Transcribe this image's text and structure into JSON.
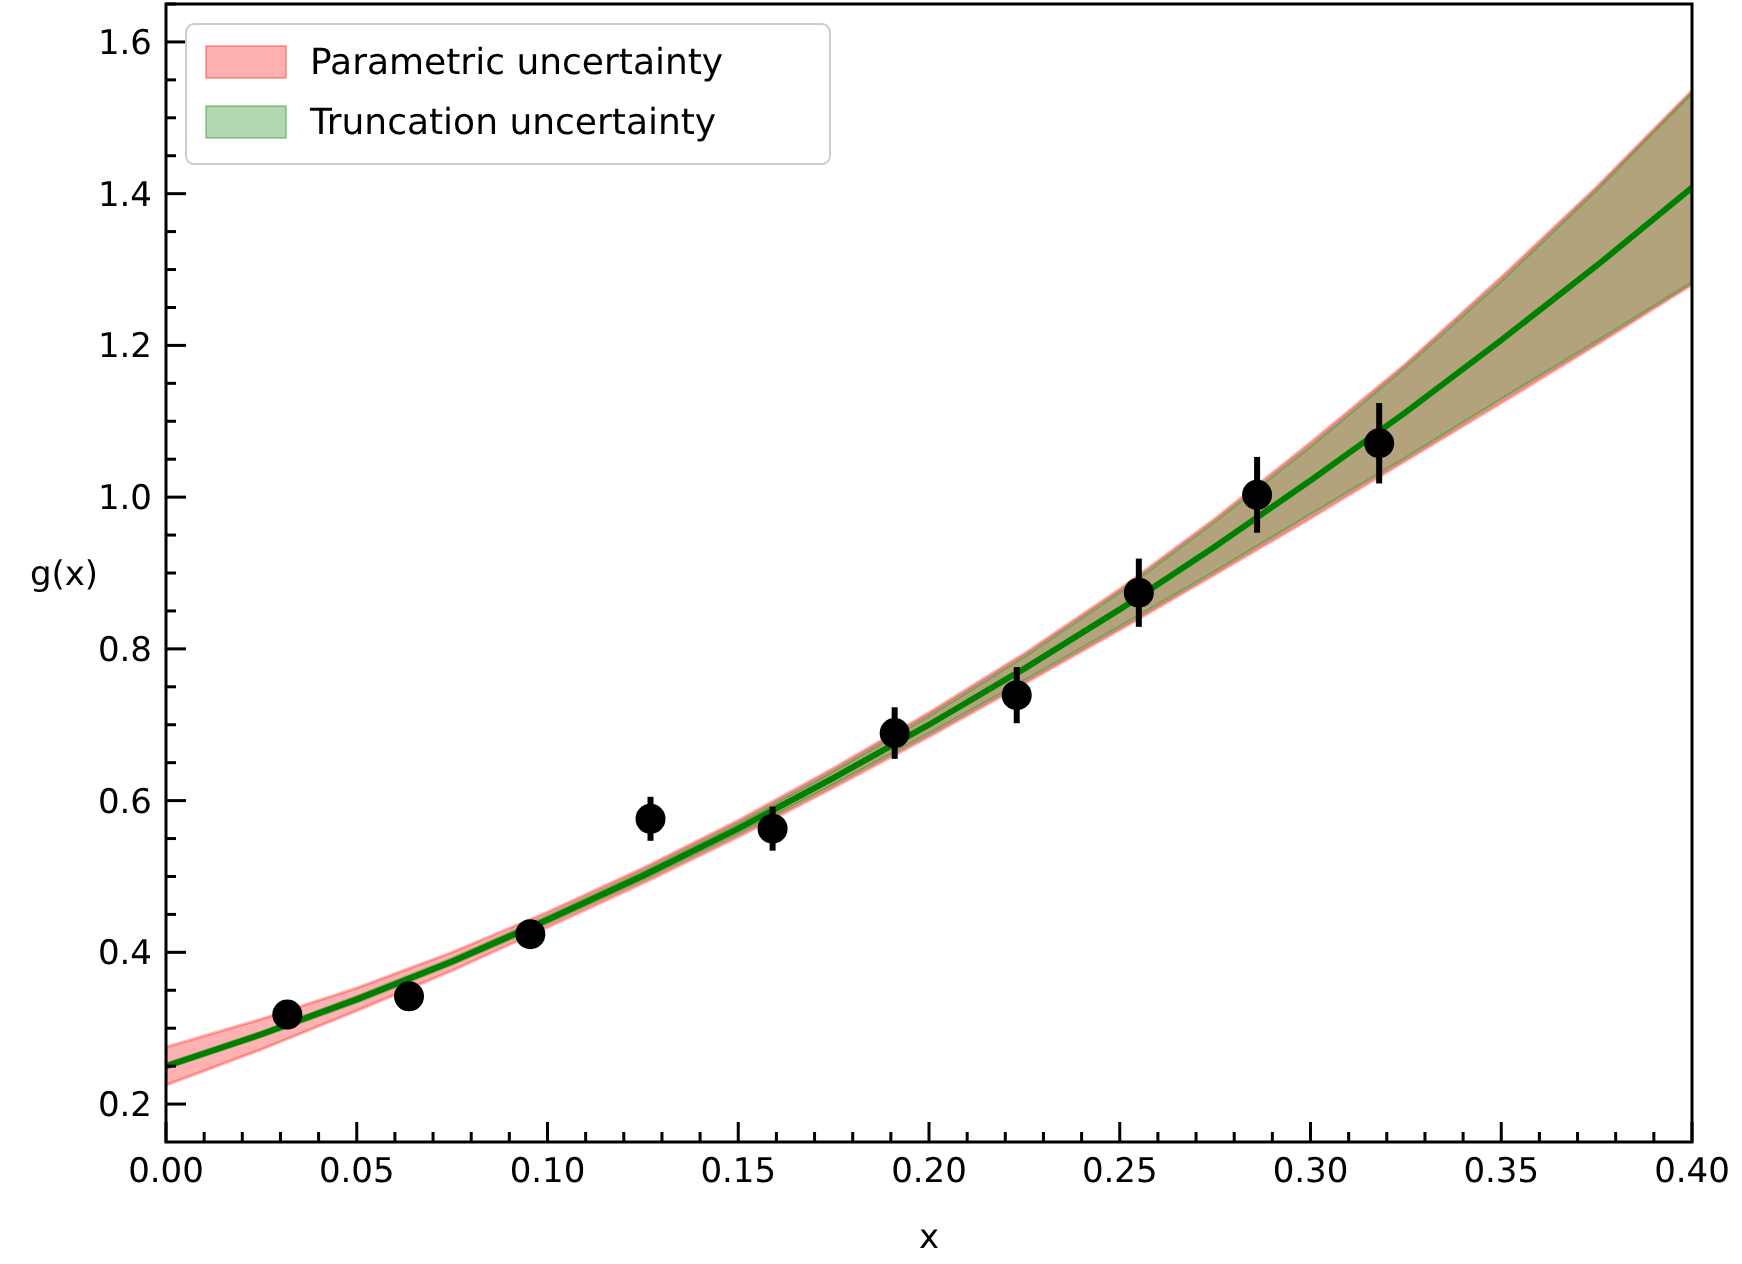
{
  "chart_data": {
    "type": "line",
    "xlabel": "x",
    "ylabel": "g(x)",
    "xlim": [
      0,
      0.4
    ],
    "ylim": [
      0.15,
      1.65
    ],
    "xticks": [
      {
        "value": 0,
        "label": "0.00"
      },
      {
        "value": 0.01,
        "label": null
      },
      {
        "value": 0.02,
        "label": null
      },
      {
        "value": 0.03,
        "label": null
      },
      {
        "value": 0.04,
        "label": null
      },
      {
        "value": 0.05,
        "label": "0.05"
      },
      {
        "value": 0.06,
        "label": null
      },
      {
        "value": 0.07,
        "label": null
      },
      {
        "value": 0.08,
        "label": null
      },
      {
        "value": 0.09,
        "label": null
      },
      {
        "value": 0.1,
        "label": "0.10"
      },
      {
        "value": 0.11,
        "label": null
      },
      {
        "value": 0.12,
        "label": null
      },
      {
        "value": 0.13,
        "label": null
      },
      {
        "value": 0.14,
        "label": null
      },
      {
        "value": 0.15,
        "label": "0.15"
      },
      {
        "value": 0.16,
        "label": null
      },
      {
        "value": 0.17,
        "label": null
      },
      {
        "value": 0.18,
        "label": null
      },
      {
        "value": 0.19,
        "label": null
      },
      {
        "value": 0.2,
        "label": "0.20"
      },
      {
        "value": 0.21,
        "label": null
      },
      {
        "value": 0.22,
        "label": null
      },
      {
        "value": 0.23,
        "label": null
      },
      {
        "value": 0.24,
        "label": null
      },
      {
        "value": 0.25,
        "label": "0.25"
      },
      {
        "value": 0.26,
        "label": null
      },
      {
        "value": 0.27,
        "label": null
      },
      {
        "value": 0.28,
        "label": null
      },
      {
        "value": 0.29,
        "label": null
      },
      {
        "value": 0.3,
        "label": "0.30"
      },
      {
        "value": 0.31,
        "label": null
      },
      {
        "value": 0.32,
        "label": null
      },
      {
        "value": 0.33,
        "label": null
      },
      {
        "value": 0.34,
        "label": null
      },
      {
        "value": 0.35,
        "label": "0.35"
      },
      {
        "value": 0.36,
        "label": null
      },
      {
        "value": 0.37,
        "label": null
      },
      {
        "value": 0.38,
        "label": null
      },
      {
        "value": 0.39,
        "label": null
      },
      {
        "value": 0.4,
        "label": "0.40"
      }
    ],
    "yticks": [
      {
        "value": 0.2,
        "label": "0.2"
      },
      {
        "value": 0.25,
        "label": null
      },
      {
        "value": 0.3,
        "label": null
      },
      {
        "value": 0.35,
        "label": null
      },
      {
        "value": 0.4,
        "label": "0.4"
      },
      {
        "value": 0.45,
        "label": null
      },
      {
        "value": 0.5,
        "label": null
      },
      {
        "value": 0.55,
        "label": null
      },
      {
        "value": 0.6,
        "label": "0.6"
      },
      {
        "value": 0.65,
        "label": null
      },
      {
        "value": 0.7,
        "label": null
      },
      {
        "value": 0.75,
        "label": null
      },
      {
        "value": 0.8,
        "label": "0.8"
      },
      {
        "value": 0.85,
        "label": null
      },
      {
        "value": 0.9,
        "label": null
      },
      {
        "value": 0.95,
        "label": null
      },
      {
        "value": 1.0,
        "label": "1.0"
      },
      {
        "value": 1.05,
        "label": null
      },
      {
        "value": 1.1,
        "label": null
      },
      {
        "value": 1.15,
        "label": null
      },
      {
        "value": 1.2,
        "label": "1.2"
      },
      {
        "value": 1.25,
        "label": null
      },
      {
        "value": 1.3,
        "label": null
      },
      {
        "value": 1.35,
        "label": null
      },
      {
        "value": 1.4,
        "label": "1.4"
      },
      {
        "value": 1.45,
        "label": null
      },
      {
        "value": 1.5,
        "label": null
      },
      {
        "value": 1.55,
        "label": null
      },
      {
        "value": 1.6,
        "label": "1.6"
      },
      {
        "value": 1.65,
        "label": null
      }
    ],
    "grid": false,
    "legend": "top left",
    "marker": "none",
    "line_style": "solid",
    "x": [
      0,
      0.025,
      0.05,
      0.075,
      0.1,
      0.125,
      0.15,
      0.175,
      0.2,
      0.225,
      0.25,
      0.275,
      0.3,
      0.325,
      0.35,
      0.375,
      0.4
    ],
    "series": [
      {
        "name": "Parametric uncertainty",
        "color": "#ff0000",
        "values": [
          null,
          null,
          null,
          null,
          null,
          null,
          null,
          null,
          null,
          null,
          null,
          null,
          null,
          null,
          null,
          null,
          null
        ],
        "lower": [
          0.225,
          0.272,
          0.323,
          0.376,
          0.433,
          0.491,
          0.552,
          0.617,
          0.684,
          0.754,
          0.825,
          0.898,
          0.972,
          1.048,
          1.124,
          1.201,
          1.28
        ],
        "upper": [
          0.275,
          0.312,
          0.353,
          0.4,
          0.453,
          0.511,
          0.574,
          0.643,
          0.716,
          0.794,
          0.879,
          0.972,
          1.072,
          1.176,
          1.29,
          1.409,
          1.536
        ]
      },
      {
        "name": "Truncation uncertainty",
        "color": "#008000",
        "values": [
          0.25,
          0.292,
          0.338,
          0.388,
          0.443,
          0.501,
          0.563,
          0.63,
          0.7,
          0.774,
          0.852,
          0.935,
          1.022,
          1.112,
          1.207,
          1.305,
          1.408
        ],
        "lower": [
          0.247,
          0.289,
          0.334,
          0.384,
          0.438,
          0.495,
          0.556,
          0.621,
          0.688,
          0.758,
          0.829,
          0.902,
          0.977,
          1.052,
          1.129,
          1.205,
          1.283
        ],
        "upper": [
          0.253,
          0.295,
          0.342,
          0.392,
          0.448,
          0.507,
          0.57,
          0.639,
          0.712,
          0.79,
          0.875,
          0.968,
          1.067,
          1.172,
          1.285,
          1.405,
          1.533
        ]
      },
      {
        "type": "scatter",
        "marker": "circle",
        "color": "#000000",
        "x": [
          0.0318,
          0.0637,
          0.0955,
          0.127,
          0.159,
          0.191,
          0.223,
          0.255,
          0.286,
          0.318
        ],
        "values": [
          0.318,
          0.342,
          0.424,
          0.576,
          0.563,
          0.689,
          0.739,
          0.874,
          1.003,
          1.071
        ],
        "errors": [
          0.01,
          0.01,
          0.01,
          0.029,
          0.029,
          0.034,
          0.037,
          0.045,
          0.05,
          0.053
        ]
      }
    ]
  }
}
